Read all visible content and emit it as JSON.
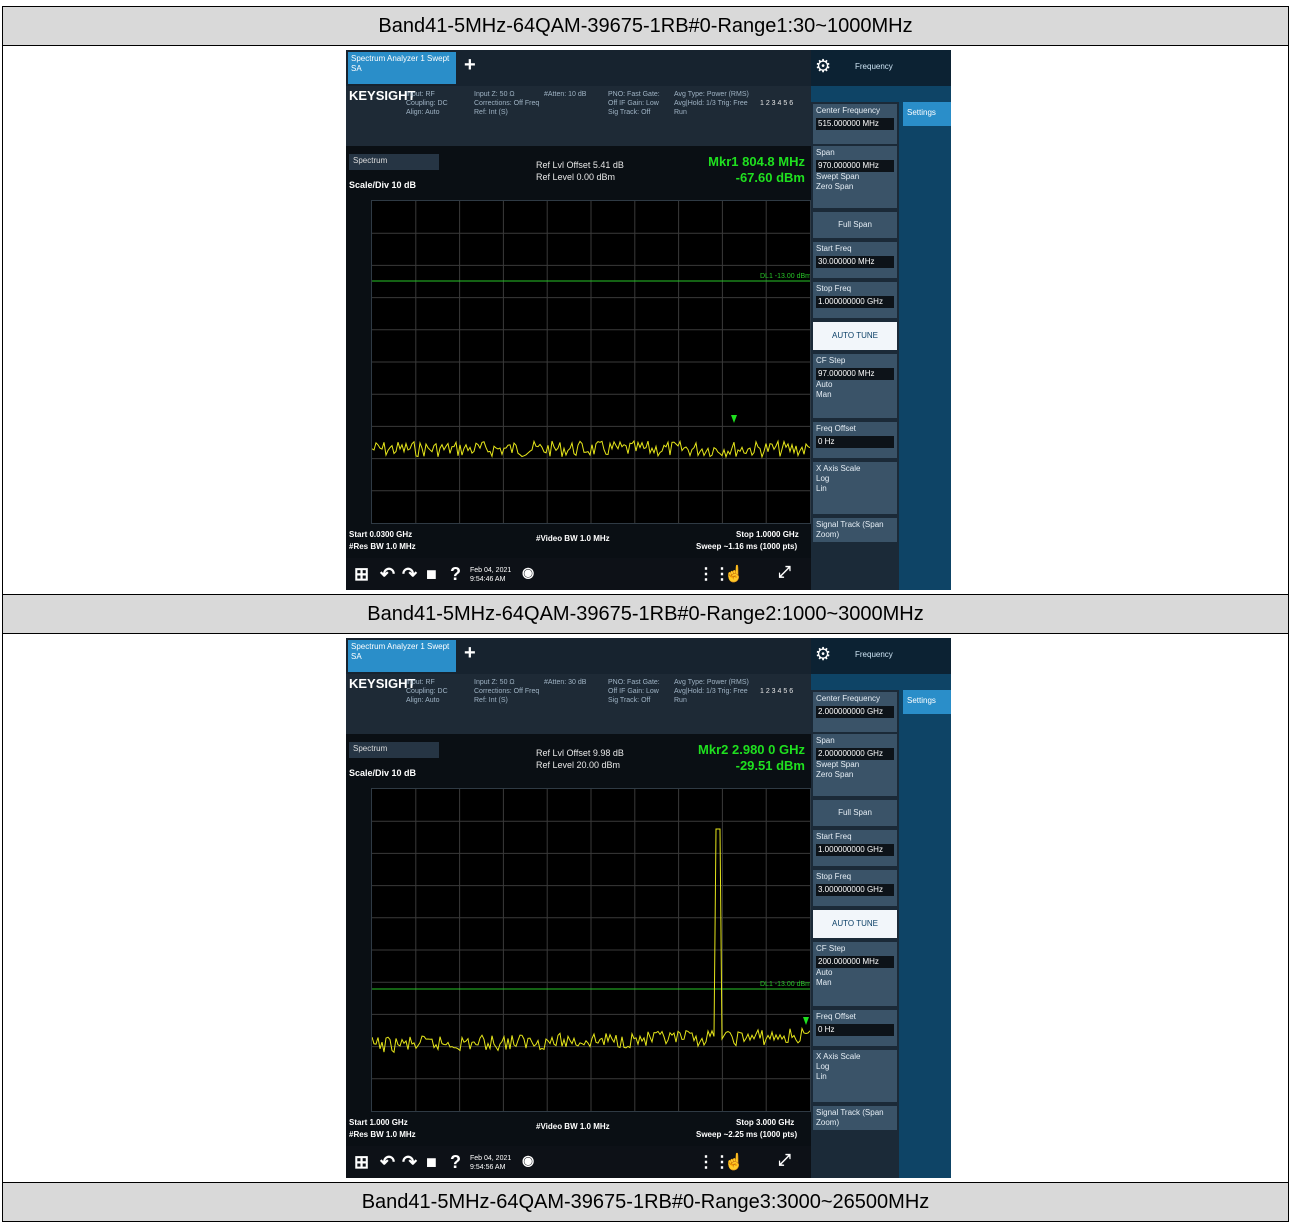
{
  "rows": [
    {
      "title": "Band41-5MHz-64QAM-39675-1RB#0-Range1:30~1000MHz",
      "tab_label": "Spectrum Analyzer 1 Swept SA",
      "brand": "KEYSIGHT",
      "info_col1": "Input: RF Coupling: DC Align: Auto",
      "info_col2": "Input Z: 50 Ω Corrections: Off Freq Ref: Int (S)",
      "info_col3": "#Atten: 10 dB",
      "info_col4": "PNO: Fast Gate: Off IF Gain: Low Sig Track: Off",
      "info_col5": "Avg Type: Power (RMS) Avg|Hold: 1/3 Trig: Free Run",
      "trace_line": "1 2 3 4 5 6",
      "spectrum_label": "Spectrum",
      "ref_offset": "Ref Lvl Offset 5.41 dB",
      "ref_level": "Ref Level 0.00 dBm",
      "scale": "Scale/Div 10 dB",
      "marker_line1": "Mkr1 804.8 MHz",
      "marker_line2": "-67.60 dBm",
      "limit_label": "DL1 -13.00 dBm",
      "start": "Start 0.0300 GHz",
      "rbw": "#Res BW 1.0 MHz",
      "vbw": "#Video BW 1.0 MHz",
      "stop": "Stop 1.0000 GHz",
      "sweep": "Sweep ~1.16 ms (1000 pts)",
      "date": "Feb 04, 2021",
      "time": "9:54:46 AM",
      "freq_menu": "Frequency",
      "settings": "Settings",
      "center_label": "Center Frequency",
      "center_value": "515.000000 MHz",
      "span_label": "Span",
      "span_value": "970.000000 MHz",
      "swept_span": "Swept Span",
      "zero_span": "Zero Span",
      "full_span": "Full Span",
      "start_label": "Start Freq",
      "start_value": "30.000000 MHz",
      "stop_label": "Stop Freq",
      "stop_value": "1.000000000 GHz",
      "auto_tune": "AUTO TUNE",
      "cf_step": "CF Step",
      "cf_value": "97.000000 MHz",
      "auto": "Auto",
      "man": "Man",
      "freq_offset": "Freq Offset",
      "offset_value": "0 Hz",
      "x_axis_scale": "X Axis Scale",
      "log": "Log",
      "lin": "Lin",
      "signal_track": "Signal Track (Span Zoom)"
    },
    {
      "title": "Band41-5MHz-64QAM-39675-1RB#0-Range2:1000~3000MHz",
      "tab_label": "Spectrum Analyzer 1 Swept SA",
      "brand": "KEYSIGHT",
      "info_col1": "Input: RF Coupling: DC Align: Auto",
      "info_col2": "Input Z: 50 Ω Corrections: Off Freq Ref: Int (S)",
      "info_col3": "#Atten: 30 dB",
      "info_col4": "PNO: Fast Gate: Off IF Gain: Low Sig Track: Off",
      "info_col5": "Avg Type: Power (RMS) Avg|Hold: 1/3 Trig: Free Run",
      "trace_line": "1 2 3 4 5 6",
      "spectrum_label": "Spectrum",
      "ref_offset": "Ref Lvl Offset 9.98 dB",
      "ref_level": "Ref Level 20.00 dBm",
      "scale": "Scale/Div 10 dB",
      "marker_line1": "Mkr2 2.980 0 GHz",
      "marker_line2": "-29.51 dBm",
      "limit_label": "DL1 -13.00 dBm",
      "start": "Start 1.000 GHz",
      "rbw": "#Res BW 1.0 MHz",
      "vbw": "#Video BW 1.0 MHz",
      "stop": "Stop 3.000 GHz",
      "sweep": "Sweep ~2.25 ms (1000 pts)",
      "date": "Feb 04, 2021",
      "time": "9:54:56 AM",
      "freq_menu": "Frequency",
      "settings": "Settings",
      "center_label": "Center Frequency",
      "center_value": "2.000000000 GHz",
      "span_label": "Span",
      "span_value": "2.000000000 GHz",
      "swept_span": "Swept Span",
      "zero_span": "Zero Span",
      "full_span": "Full Span",
      "start_label": "Start Freq",
      "start_value": "1.000000000 GHz",
      "stop_label": "Stop Freq",
      "stop_value": "3.000000000 GHz",
      "auto_tune": "AUTO TUNE",
      "cf_step": "CF Step",
      "cf_value": "200.000000 MHz",
      "auto": "Auto",
      "man": "Man",
      "freq_offset": "Freq Offset",
      "offset_value": "0 Hz",
      "x_axis_scale": "X Axis Scale",
      "log": "Log",
      "lin": "Lin",
      "signal_track": "Signal Track (Span Zoom)"
    }
  ],
  "row3_title": "Band41-5MHz-64QAM-39675-1RB#0-Range3:3000~26500MHz",
  "colors": {
    "trace": "#e6e61a",
    "limit": "#27c427",
    "marker": "#1fe01f"
  }
}
